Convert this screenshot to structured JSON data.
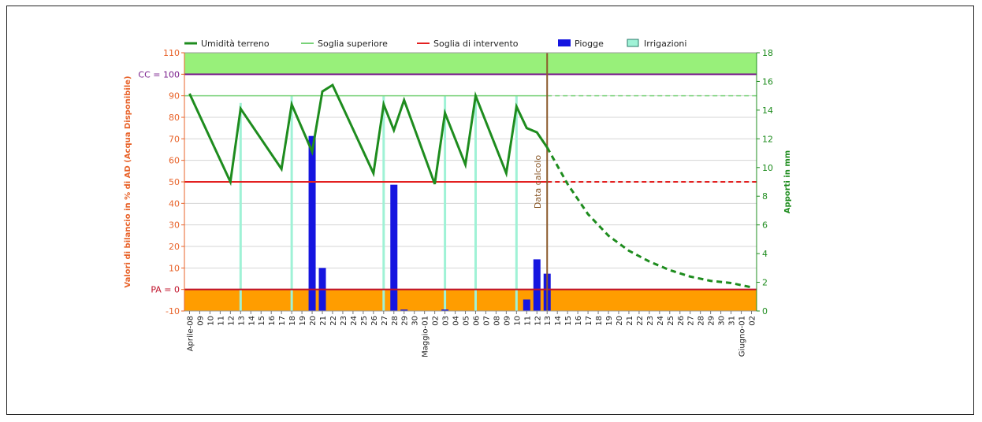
{
  "chart_data": {
    "type": "line",
    "legend": {
      "placement": "top",
      "items": [
        {
          "name": "Umidità terreno",
          "color": "#1e8c1e",
          "kind": "line"
        },
        {
          "name": "Soglia superiore",
          "color": "#78d278",
          "kind": "line"
        },
        {
          "name": "Soglia di intervento",
          "color": "#e32020",
          "kind": "line"
        },
        {
          "name": "Piogge",
          "color": "#1515e0",
          "kind": "bar"
        },
        {
          "name": "Irrigazioni",
          "color": "#9ff2d6",
          "kind": "box"
        }
      ]
    },
    "y_left": {
      "label": "Valori di bilancio in % di AD (Acqua Disponibile)",
      "range": [
        -10,
        110
      ],
      "ticks": [
        -10,
        0,
        10,
        20,
        30,
        40,
        50,
        60,
        70,
        80,
        90,
        100,
        110
      ],
      "tick_labels": [
        "-10",
        "PA = 0",
        "10",
        "20",
        "30",
        "40",
        "50",
        "60",
        "70",
        "80",
        "90",
        "CC = 100",
        "110"
      ],
      "color": "#e8632a",
      "grid": true
    },
    "y_right": {
      "label": "Apporti in mm",
      "range": [
        0,
        18
      ],
      "ticks": [
        0,
        2,
        4,
        6,
        8,
        10,
        12,
        14,
        16,
        18
      ],
      "color": "#1e8c1e"
    },
    "x_labels": [
      "Aprile-08",
      "09",
      "10",
      "11",
      "12",
      "13",
      "14",
      "15",
      "16",
      "17",
      "18",
      "19",
      "20",
      "21",
      "22",
      "23",
      "24",
      "25",
      "26",
      "27",
      "28",
      "29",
      "30",
      "Maggio-01",
      "02",
      "03",
      "04",
      "05",
      "06",
      "07",
      "08",
      "09",
      "10",
      "11",
      "12",
      "13",
      "14",
      "15",
      "16",
      "17",
      "18",
      "19",
      "20",
      "21",
      "22",
      "23",
      "24",
      "25",
      "26",
      "27",
      "28",
      "29",
      "30",
      "31",
      "Giugno-01",
      "02"
    ],
    "zones": {
      "above_cc": {
        "from": 100,
        "to": 110,
        "color": "#98f07a"
      },
      "below_pa": {
        "from": -10,
        "to": 0,
        "color": "#ff9d00"
      },
      "cc_color": "#7a1f8c",
      "pa_color": "#c0122a"
    },
    "calc_date": {
      "index": 35,
      "label": "Data calcolo",
      "color": "#8b5a2b"
    },
    "thresholds": {
      "upper": {
        "value": 90,
        "color": "#78d278"
      },
      "intervention": {
        "value": 50,
        "color": "#e32020"
      }
    },
    "soil_moisture": [
      {
        "x": 0,
        "y": 91
      },
      {
        "x": 4,
        "y": 50
      },
      {
        "x": 5,
        "y": 84
      },
      {
        "x": 9,
        "y": 56
      },
      {
        "x": 10,
        "y": 86
      },
      {
        "x": 12,
        "y": 64
      },
      {
        "x": 13,
        "y": 92
      },
      {
        "x": 14,
        "y": 95
      },
      {
        "x": 18,
        "y": 54
      },
      {
        "x": 19,
        "y": 86
      },
      {
        "x": 20,
        "y": 74
      },
      {
        "x": 21,
        "y": 88
      },
      {
        "x": 24,
        "y": 49
      },
      {
        "x": 25,
        "y": 82
      },
      {
        "x": 27,
        "y": 58
      },
      {
        "x": 28,
        "y": 90
      },
      {
        "x": 31,
        "y": 54
      },
      {
        "x": 32,
        "y": 85
      },
      {
        "x": 33,
        "y": 75
      },
      {
        "x": 34,
        "y": 73
      },
      {
        "x": 35,
        "y": 66
      }
    ],
    "soil_moisture_forecast": [
      {
        "x": 35,
        "y": 66
      },
      {
        "x": 37,
        "y": 49
      },
      {
        "x": 39,
        "y": 35
      },
      {
        "x": 41,
        "y": 25
      },
      {
        "x": 43,
        "y": 18
      },
      {
        "x": 45,
        "y": 13
      },
      {
        "x": 47,
        "y": 9
      },
      {
        "x": 49,
        "y": 6
      },
      {
        "x": 51,
        "y": 4
      },
      {
        "x": 53,
        "y": 3
      },
      {
        "x": 55,
        "y": 1
      }
    ],
    "rain_mm": [
      {
        "x": 12,
        "y": 12.2
      },
      {
        "x": 13,
        "y": 3.0
      },
      {
        "x": 20,
        "y": 8.8
      },
      {
        "x": 21,
        "y": 0.1
      },
      {
        "x": 25,
        "y": 0.1
      },
      {
        "x": 33,
        "y": 0.8
      },
      {
        "x": 34,
        "y": 3.6
      },
      {
        "x": 35,
        "y": 2.6
      }
    ],
    "irrigations": [
      {
        "x": 5,
        "mm": 14.5
      },
      {
        "x": 10,
        "mm": 15
      },
      {
        "x": 19,
        "mm": 15
      },
      {
        "x": 25,
        "mm": 15
      },
      {
        "x": 28,
        "mm": 15
      },
      {
        "x": 32,
        "mm": 15
      }
    ]
  }
}
